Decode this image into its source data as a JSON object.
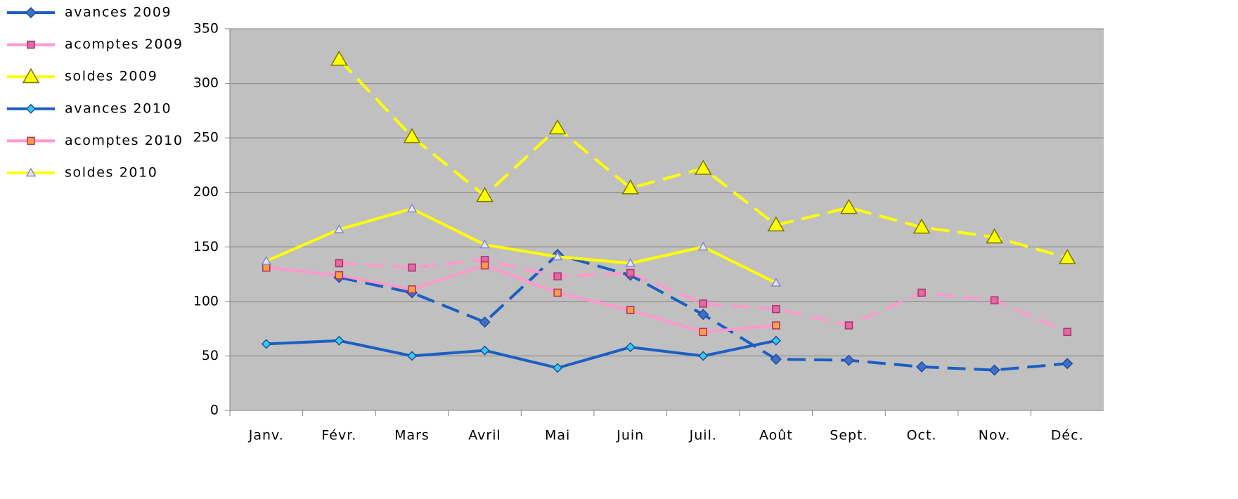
{
  "chart_data": {
    "type": "line",
    "categories": [
      "Janv.",
      "Févr.",
      "Mars",
      "Avril",
      "Mai",
      "Juin",
      "Juil.",
      "Août",
      "Sept.",
      "Oct.",
      "Nov.",
      "Déc."
    ],
    "ylim": [
      0,
      350
    ],
    "yticks": [
      0,
      50,
      100,
      150,
      200,
      250,
      300,
      350
    ],
    "grid": true,
    "legend": "left",
    "series": [
      {
        "name": "avances 2009",
        "color": "#1a5fc4",
        "marker": "diamond",
        "marker_fill": "#3f6fc6",
        "marker_size": 7,
        "dashed": true,
        "values": [
          null,
          122,
          108,
          81,
          143,
          124,
          88,
          47,
          46,
          40,
          37,
          43
        ]
      },
      {
        "name": "acomptes 2009",
        "color": "#ff99cc",
        "marker": "square",
        "marker_fill": "#e06aa6",
        "marker_size": 5,
        "dashed": true,
        "values": [
          null,
          135,
          131,
          138,
          123,
          126,
          98,
          93,
          78,
          108,
          101,
          72
        ]
      },
      {
        "name": "soldes 2009",
        "color": "#ffff00",
        "marker": "triangle",
        "marker_fill": "#ffff00",
        "marker_size": 11,
        "dashed": true,
        "values": [
          null,
          322,
          251,
          197,
          259,
          204,
          222,
          170,
          186,
          168,
          159,
          140
        ]
      },
      {
        "name": "avances 2010",
        "color": "#1a5fc4",
        "marker": "diamond",
        "marker_fill": "#33ccee",
        "marker_size": 6,
        "dashed": false,
        "values": [
          61,
          64,
          50,
          55,
          39,
          58,
          50,
          64,
          null,
          null,
          null,
          null
        ]
      },
      {
        "name": "acomptes 2010",
        "color": "#ff99cc",
        "marker": "square",
        "marker_fill": "#ffa040",
        "marker_size": 5,
        "dashed": false,
        "values": [
          131,
          124,
          111,
          133,
          108,
          92,
          72,
          78,
          null,
          null,
          null,
          null
        ]
      },
      {
        "name": "soldes 2010",
        "color": "#ffff00",
        "marker": "triangle",
        "marker_fill": "#dde8ff",
        "marker_size": 6,
        "dashed": false,
        "values": [
          137,
          166,
          185,
          152,
          141,
          135,
          150,
          117,
          null,
          null,
          null,
          null
        ]
      }
    ]
  }
}
